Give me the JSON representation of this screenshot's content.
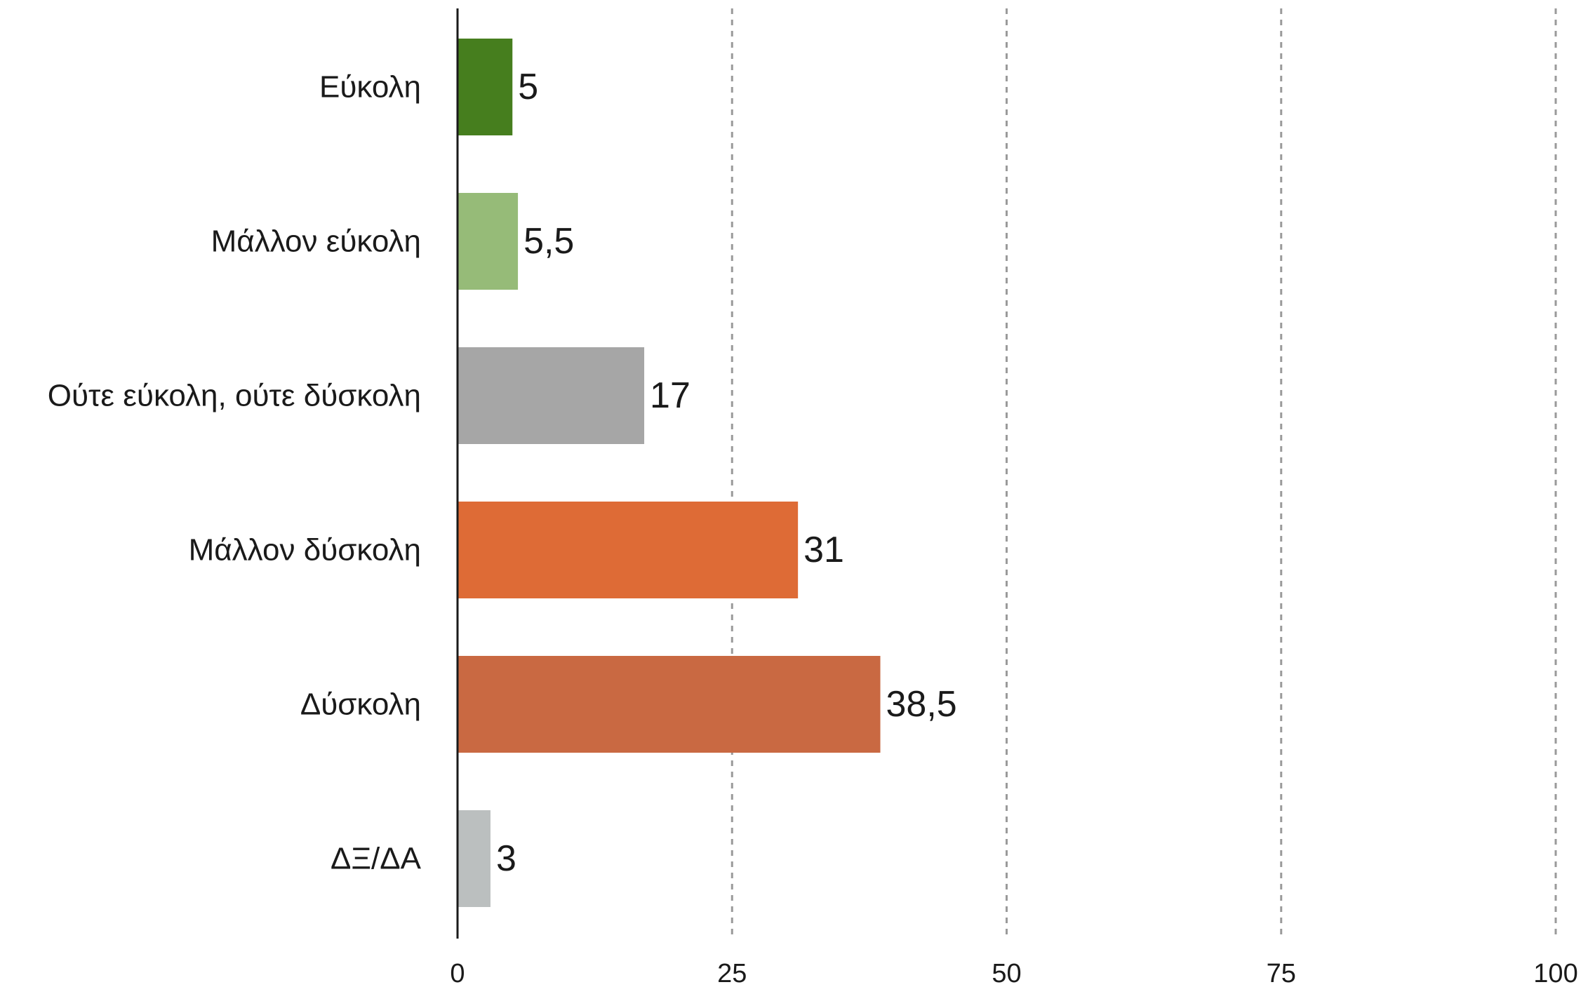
{
  "chart_data": {
    "type": "bar",
    "orientation": "horizontal",
    "title": "",
    "xlabel": "",
    "ylabel": "",
    "categories": [
      "Εύκολη",
      "Μάλλον εύκολη",
      "Ούτε εύκολη, ούτε δύσκολη",
      "Μάλλον δύσκολη",
      "Δύσκολη",
      "ΔΞ/ΔΑ"
    ],
    "values": [
      5,
      5.5,
      17,
      31,
      38.5,
      3
    ],
    "value_labels": [
      "5",
      "5,5",
      "17",
      "31",
      "38,5",
      "3"
    ],
    "colors": [
      "#467e1e",
      "#96bb78",
      "#a6a6a6",
      "#de6b36",
      "#c96942",
      "#bbbfbf"
    ],
    "xlim": [
      0,
      100
    ],
    "xticks": [
      0,
      25,
      50,
      75,
      100
    ],
    "grid": "vertical-dashed",
    "legend": "none"
  }
}
